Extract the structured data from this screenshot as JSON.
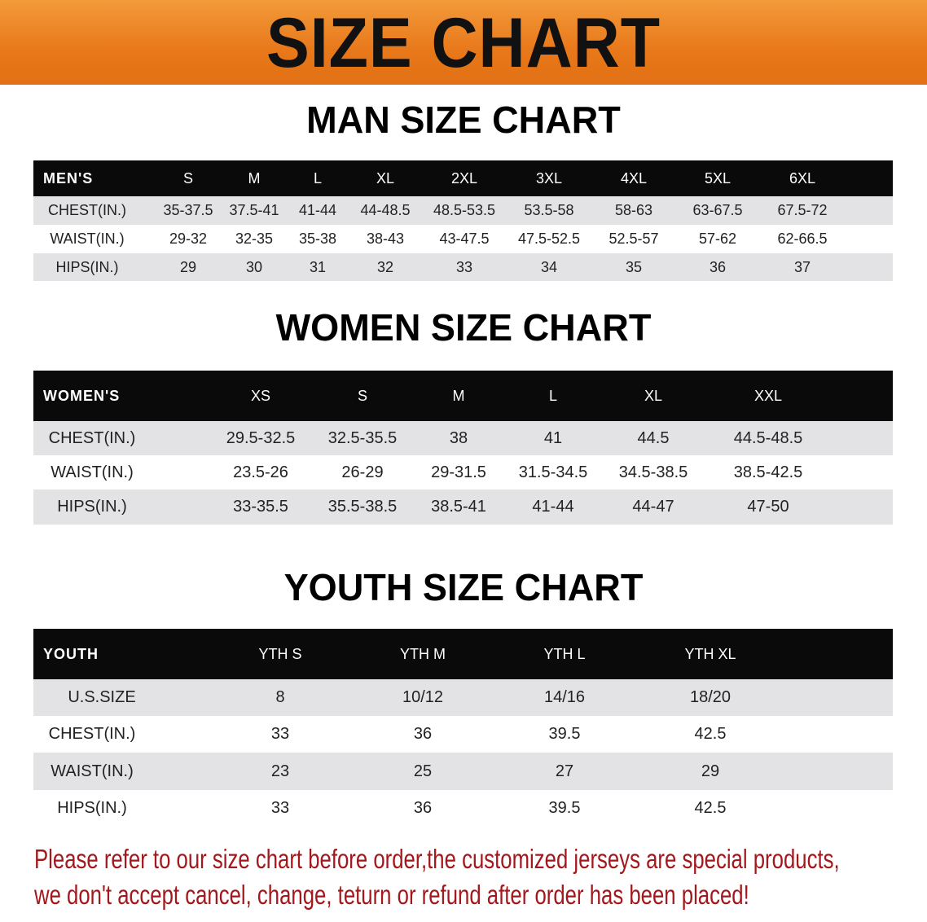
{
  "banner": {
    "title": "SIZE CHART"
  },
  "men": {
    "title": "MAN SIZE CHART",
    "header": [
      "MEN'S",
      "S",
      "M",
      "L",
      "XL",
      "2XL",
      "3XL",
      "4XL",
      "5XL",
      "6XL"
    ],
    "rows": [
      [
        "CHEST(IN.)",
        "35-37.5",
        "37.5-41",
        "41-44",
        "44-48.5",
        "48.5-53.5",
        "53.5-58",
        "58-63",
        "63-67.5",
        "67.5-72"
      ],
      [
        "WAIST(IN.)",
        "29-32",
        "32-35",
        "35-38",
        "38-43",
        "43-47.5",
        "47.5-52.5",
        "52.5-57",
        "57-62",
        "62-66.5"
      ],
      [
        "HIPS(IN.)",
        "29",
        "30",
        "31",
        "32",
        "33",
        "34",
        "35",
        "36",
        "37"
      ]
    ]
  },
  "women": {
    "title": "WOMEN SIZE CHART",
    "header": [
      "WOMEN'S",
      "XS",
      "S",
      "M",
      "L",
      "XL",
      "XXL"
    ],
    "rows": [
      [
        "CHEST(IN.)",
        "29.5-32.5",
        "32.5-35.5",
        "38",
        "41",
        "44.5",
        "44.5-48.5"
      ],
      [
        "WAIST(IN.)",
        "23.5-26",
        "26-29",
        "29-31.5",
        "31.5-34.5",
        "34.5-38.5",
        "38.5-42.5"
      ],
      [
        "HIPS(IN.)",
        "33-35.5",
        "35.5-38.5",
        "38.5-41",
        "41-44",
        "44-47",
        "47-50"
      ]
    ]
  },
  "youth": {
    "title": "YOUTH SIZE CHART",
    "header": [
      "YOUTH",
      "YTH S",
      "YTH M",
      "YTH L",
      "YTH XL"
    ],
    "rows": [
      [
        "U.S.SIZE",
        "8",
        "10/12",
        "14/16",
        "18/20"
      ],
      [
        "CHEST(IN.)",
        "33",
        "36",
        "39.5",
        "42.5"
      ],
      [
        "WAIST(IN.)",
        "23",
        "25",
        "27",
        "29"
      ],
      [
        "HIPS(IN.)",
        "33",
        "36",
        "39.5",
        "42.5"
      ]
    ]
  },
  "notice": {
    "line1": "Please refer to our size chart before order,the customized jerseys are special products,",
    "line2": "we don't accept cancel, change, teturn or refund after order has been placed!",
    "color": "#a3181c"
  },
  "colors": {
    "banner": "#e8781a",
    "header_row": "#0a0a0a",
    "stripe": "#e3e3e5"
  }
}
